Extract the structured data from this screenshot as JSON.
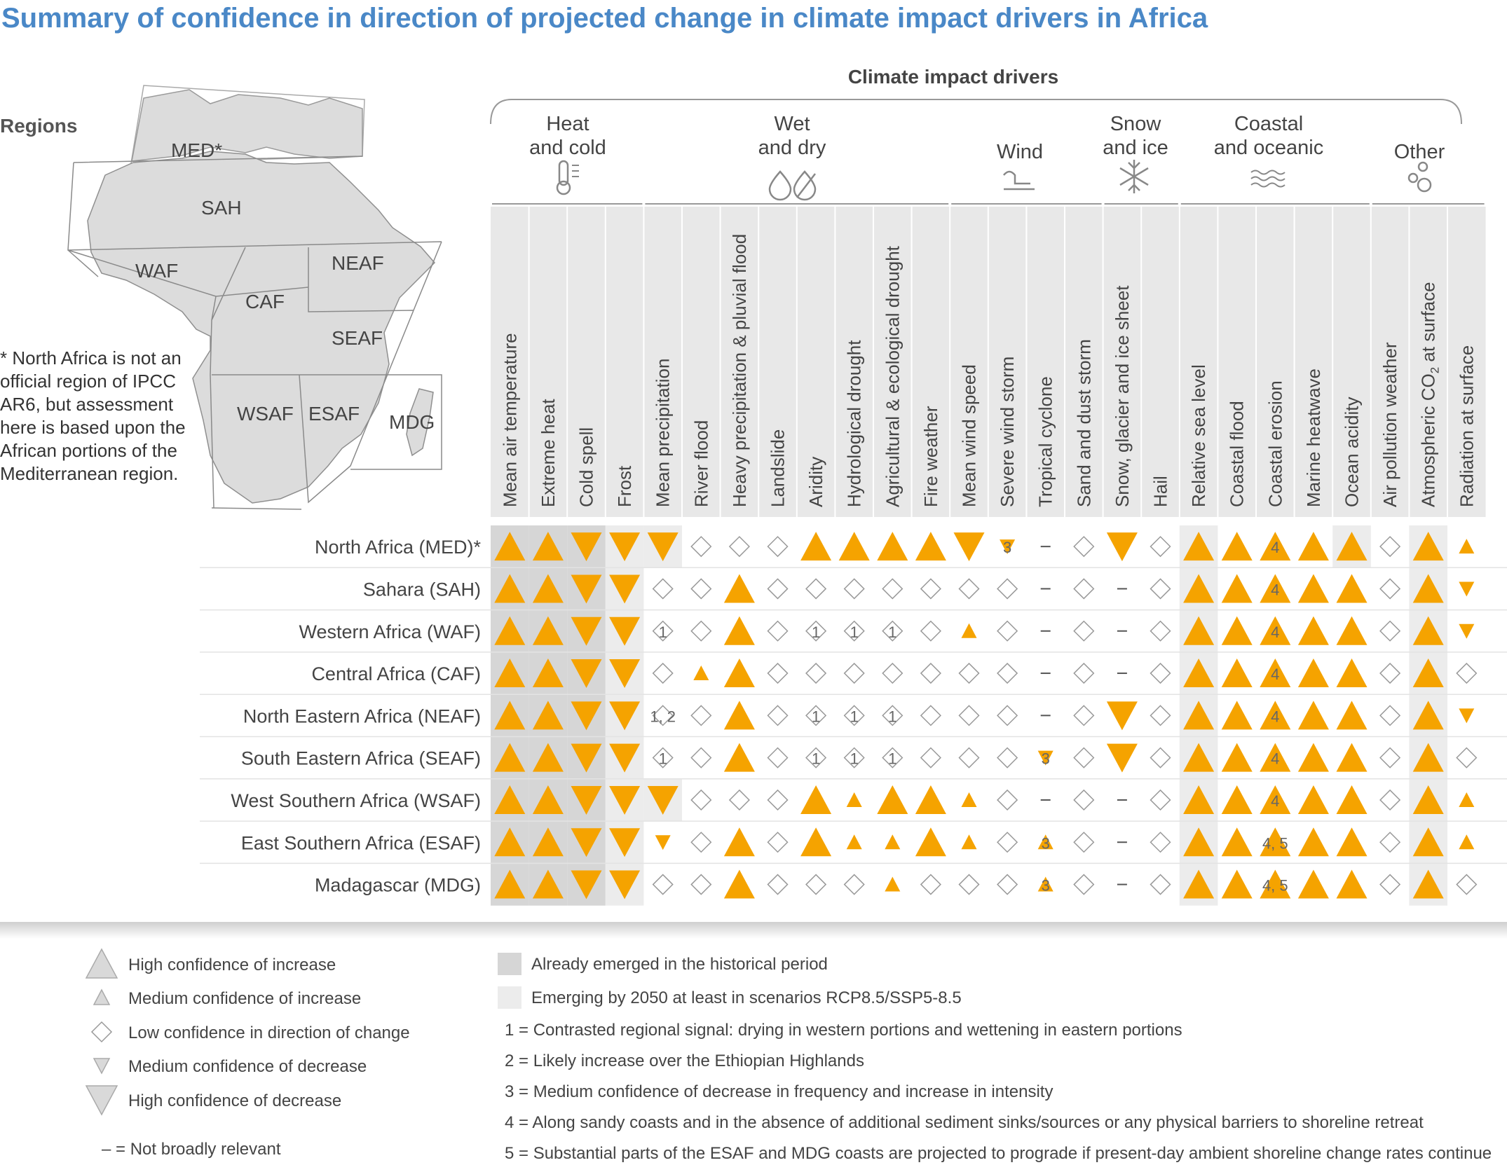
{
  "title": "Summary of confidence in direction of projected change in climate impact drivers in Africa",
  "regions_label": "Regions",
  "map_labels": {
    "med": "MED*",
    "sah": "SAH",
    "waf": "WAF",
    "caf": "CAF",
    "neaf": "NEAF",
    "seaf": "SEAF",
    "wsaf": "WSAF",
    "esaf": "ESAF",
    "mdg": "MDG"
  },
  "map_note": "* North Africa is not an official region of IPCC AR6, but assessment here is based upon the African portions of the Mediterranean region.",
  "cid_title": "Climate impact drivers",
  "groups": {
    "heat": [
      "Heat",
      "and cold"
    ],
    "wet": [
      "Wet",
      "and dry"
    ],
    "wind": [
      "Wind"
    ],
    "snow": [
      "Snow",
      "and ice"
    ],
    "coastal": [
      "Coastal",
      "and oceanic"
    ],
    "other": [
      "Other"
    ]
  },
  "group_icons": [
    "thermometer-icon",
    "droplets-icon",
    "wind-icon",
    "snowflake-icon",
    "waves-icon",
    "bubbles-icon"
  ],
  "colors": {
    "triangle": "#f5a300",
    "diamond": "#ffffff",
    "already": "#d6d6d6",
    "emerging": "#ececec",
    "title": "#4a88c7"
  },
  "chart_data": {
    "type": "table",
    "columns": [
      "Mean air temperature",
      "Extreme heat",
      "Cold spell",
      "Frost",
      "Mean precipitation",
      "River flood",
      "Heavy precipitation & pluvial flood",
      "Landslide",
      "Aridity",
      "Hydrological drought",
      "Agricultural & ecological drought",
      "Fire weather",
      "Mean wind speed",
      "Severe wind storm",
      "Tropical cyclone",
      "Sand and dust storm",
      "Snow, glacier and ice sheet",
      "Hail",
      "Relative sea level",
      "Coastal flood",
      "Coastal erosion",
      "Marine heatwave",
      "Ocean acidity",
      "Air pollution weather",
      "Atmospheric CO2 at surface",
      "Radiation at surface"
    ],
    "atmospheric_co2_label": {
      "main": "Atmospheric CO",
      "sub": "2",
      "rest": " at surface"
    },
    "rows": [
      "North Africa (MED)*",
      "Sahara (SAH)",
      "Western Africa (WAF)",
      "Central Africa (CAF)",
      "North Eastern Africa (NEAF)",
      "South Eastern Africa (SEAF)",
      "West Southern Africa (WSAF)",
      "East Southern Africa (ESAF)",
      "Madagascar (MDG)"
    ],
    "codes_legend": {
      "HU": "High confidence of increase",
      "MU": "Medium confidence of increase",
      "L": "Low confidence in direction of change",
      "MD": "Medium confidence of decrease",
      "HD": "High confidence of decrease",
      "-": "Not broadly relevant"
    },
    "cells": [
      [
        "HU",
        "HU",
        "HD",
        "HD",
        "HD",
        "L",
        "L",
        "L",
        "HU",
        "HU",
        "HU",
        "HU",
        "HD",
        "MD",
        "-",
        "L",
        "HD",
        "L",
        "HU",
        "HU",
        "HU",
        "HU",
        "HU",
        "L",
        "HU",
        "MU"
      ],
      [
        "HU",
        "HU",
        "HD",
        "HD",
        "L",
        "L",
        "HU",
        "L",
        "L",
        "L",
        "L",
        "L",
        "L",
        "L",
        "-",
        "L",
        "-",
        "L",
        "HU",
        "HU",
        "HU",
        "HU",
        "HU",
        "L",
        "HU",
        "MD"
      ],
      [
        "HU",
        "HU",
        "HD",
        "HD",
        "L",
        "L",
        "HU",
        "L",
        "L",
        "L",
        "L",
        "L",
        "MU",
        "L",
        "-",
        "L",
        "-",
        "L",
        "HU",
        "HU",
        "HU",
        "HU",
        "HU",
        "L",
        "HU",
        "MD"
      ],
      [
        "HU",
        "HU",
        "HD",
        "HD",
        "L",
        "MU",
        "HU",
        "L",
        "L",
        "L",
        "L",
        "L",
        "L",
        "L",
        "-",
        "L",
        "-",
        "L",
        "HU",
        "HU",
        "HU",
        "HU",
        "HU",
        "L",
        "HU",
        "L"
      ],
      [
        "HU",
        "HU",
        "HD",
        "HD",
        "L",
        "L",
        "HU",
        "L",
        "L",
        "L",
        "L",
        "L",
        "L",
        "L",
        "-",
        "L",
        "HD",
        "L",
        "HU",
        "HU",
        "HU",
        "HU",
        "HU",
        "L",
        "HU",
        "MD"
      ],
      [
        "HU",
        "HU",
        "HD",
        "HD",
        "L",
        "L",
        "HU",
        "L",
        "L",
        "L",
        "L",
        "L",
        "L",
        "L",
        "MD",
        "L",
        "HD",
        "L",
        "HU",
        "HU",
        "HU",
        "HU",
        "HU",
        "L",
        "HU",
        "L"
      ],
      [
        "HU",
        "HU",
        "HD",
        "HD",
        "HD",
        "L",
        "L",
        "L",
        "HU",
        "MU",
        "HU",
        "HU",
        "MU",
        "L",
        "-",
        "L",
        "-",
        "L",
        "HU",
        "HU",
        "HU",
        "HU",
        "HU",
        "L",
        "HU",
        "MU"
      ],
      [
        "HU",
        "HU",
        "HD",
        "HD",
        "MD",
        "L",
        "HU",
        "L",
        "HU",
        "MU",
        "MU",
        "HU",
        "MU",
        "L",
        "MU",
        "L",
        "-",
        "L",
        "HU",
        "HU",
        "HU",
        "HU",
        "HU",
        "L",
        "HU",
        "MU"
      ],
      [
        "HU",
        "HU",
        "HD",
        "HD",
        "L",
        "L",
        "HU",
        "L",
        "L",
        "L",
        "MU",
        "L",
        "L",
        "L",
        "MU",
        "L",
        "-",
        "L",
        "HU",
        "HU",
        "HU",
        "HU",
        "HU",
        "L",
        "HU",
        "L"
      ]
    ],
    "notes": [
      {
        "row": 0,
        "col": 13,
        "text": "3"
      },
      {
        "row": 0,
        "col": 20,
        "text": "4"
      },
      {
        "row": 1,
        "col": 20,
        "text": "4"
      },
      {
        "row": 2,
        "col": 20,
        "text": "4"
      },
      {
        "row": 3,
        "col": 20,
        "text": "4"
      },
      {
        "row": 4,
        "col": 20,
        "text": "4"
      },
      {
        "row": 5,
        "col": 20,
        "text": "4"
      },
      {
        "row": 6,
        "col": 20,
        "text": "4"
      },
      {
        "row": 7,
        "col": 20,
        "text": "4, 5"
      },
      {
        "row": 8,
        "col": 20,
        "text": "4, 5"
      },
      {
        "row": 2,
        "col": 4,
        "text": "1"
      },
      {
        "row": 2,
        "col": 8,
        "text": "1"
      },
      {
        "row": 2,
        "col": 9,
        "text": "1"
      },
      {
        "row": 2,
        "col": 10,
        "text": "1"
      },
      {
        "row": 4,
        "col": 4,
        "text": "1, 2"
      },
      {
        "row": 4,
        "col": 8,
        "text": "1"
      },
      {
        "row": 4,
        "col": 9,
        "text": "1"
      },
      {
        "row": 4,
        "col": 10,
        "text": "1"
      },
      {
        "row": 5,
        "col": 4,
        "text": "1"
      },
      {
        "row": 5,
        "col": 8,
        "text": "1"
      },
      {
        "row": 5,
        "col": 9,
        "text": "1"
      },
      {
        "row": 5,
        "col": 10,
        "text": "1"
      },
      {
        "row": 5,
        "col": 14,
        "text": "3"
      },
      {
        "row": 7,
        "col": 14,
        "text": "3"
      },
      {
        "row": 8,
        "col": 14,
        "text": "3"
      }
    ],
    "emergence": {
      "already": [
        {
          "col": 0,
          "rows": "all"
        },
        {
          "col": 1,
          "rows": "all"
        },
        {
          "col": 2,
          "rows": "all"
        }
      ],
      "emerging": [
        {
          "col": 3,
          "rows": "all"
        },
        {
          "col": 4,
          "rows": [
            0,
            6
          ]
        },
        {
          "col": 18,
          "rows": "all"
        },
        {
          "col": 22,
          "rows": [
            0
          ]
        },
        {
          "col": 24,
          "rows": "all"
        }
      ]
    }
  },
  "legend": [
    {
      "code": "HU",
      "label": "High confidence of increase"
    },
    {
      "code": "MU",
      "label": "Medium confidence of increase"
    },
    {
      "code": "L",
      "label": "Low confidence in direction of change"
    },
    {
      "code": "MD",
      "label": "Medium confidence of decrease"
    },
    {
      "code": "HD",
      "label": "High confidence of decrease"
    }
  ],
  "legend_dash": "– = Not broadly relevant",
  "legend_boxes": [
    {
      "label": "Already emerged in the historical period"
    },
    {
      "label": "Emerging by 2050 at least in scenarios RCP8.5/SSP5-8.5"
    }
  ],
  "footnotes": [
    "1 = Contrasted regional signal: drying in western portions and wettening in eastern portions",
    "2 = Likely increase over the Ethiopian Highlands",
    "3 = Medium confidence of decrease in frequency and increase in intensity",
    "4 = Along sandy coasts and in the absence of additional sediment sinks/sources or any physical barriers to shoreline retreat",
    "5 = Substantial parts of the ESAF and MDG coasts are projected to prograde if present-day ambient shoreline change rates continue"
  ]
}
